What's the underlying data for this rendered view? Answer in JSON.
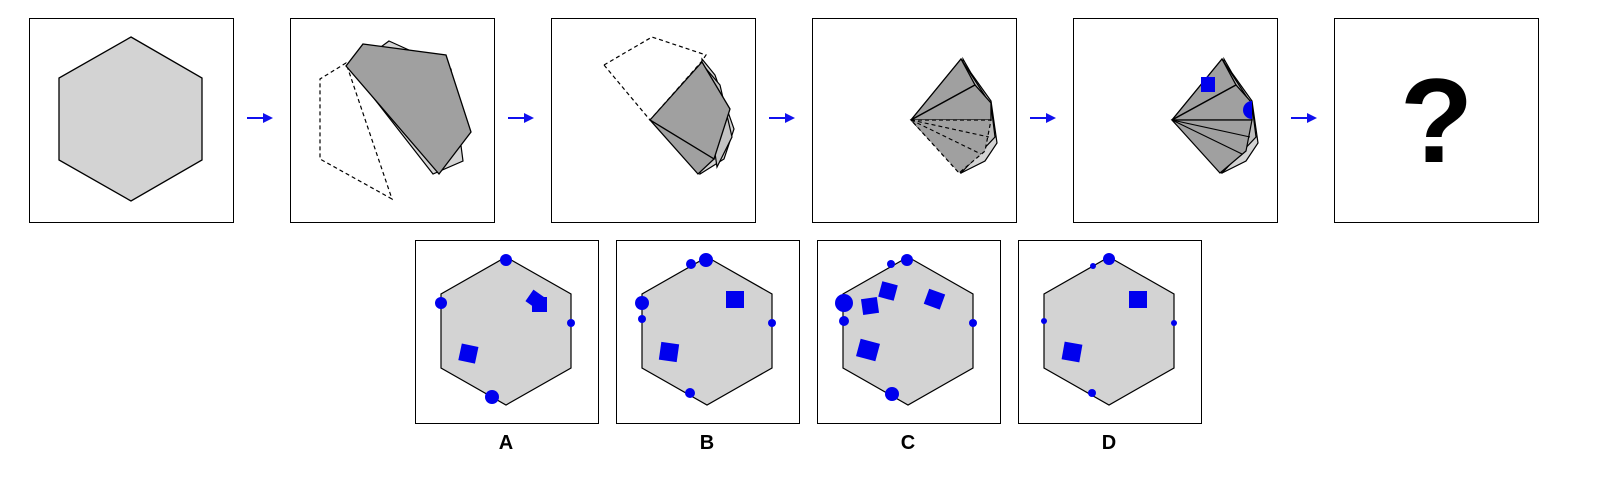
{
  "question": {
    "mark": "?"
  },
  "options": [
    {
      "label": "A"
    },
    {
      "label": "B"
    },
    {
      "label": "C"
    },
    {
      "label": "D"
    }
  ],
  "colors": {
    "paper": "#d3d3d3",
    "paper_folded": "#a0a0a0",
    "outline": "#000000",
    "punch": "#0000ee",
    "arrow": "#1010ee"
  }
}
